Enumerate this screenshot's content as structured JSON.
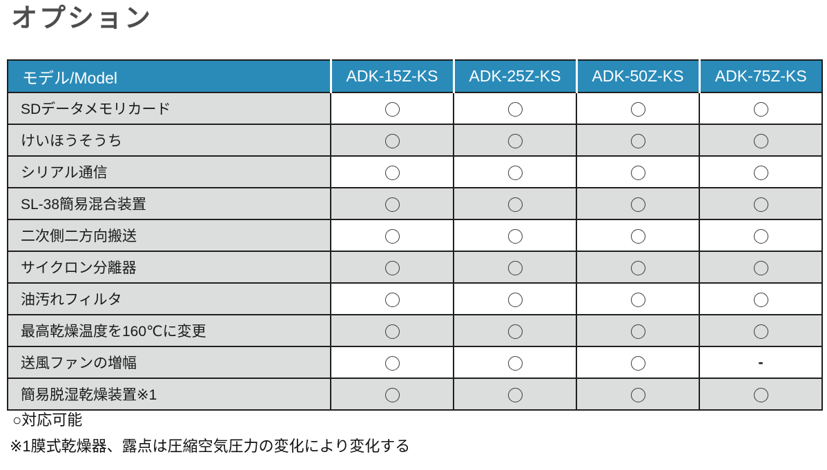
{
  "page": {
    "title": "オプション"
  },
  "table": {
    "header": {
      "label": "モデル/Model",
      "models": [
        "ADK-15Z-KS",
        "ADK-25Z-KS",
        "ADK-50Z-KS",
        "ADK-75Z-KS"
      ]
    },
    "rows": [
      {
        "label": "SDデータメモリカード",
        "values": [
          "○",
          "○",
          "○",
          "○"
        ]
      },
      {
        "label": "けいほうそうち",
        "values": [
          "○",
          "○",
          "○",
          "○"
        ]
      },
      {
        "label": "シリアル通信",
        "values": [
          "○",
          "○",
          "○",
          "○"
        ]
      },
      {
        "label": "SL-38簡易混合装置",
        "values": [
          "○",
          "○",
          "○",
          "○"
        ]
      },
      {
        "label": "二次側二方向搬送",
        "values": [
          "○",
          "○",
          "○",
          "○"
        ]
      },
      {
        "label": "サイクロン分離器",
        "values": [
          "○",
          "○",
          "○",
          "○"
        ]
      },
      {
        "label": "油汚れフィルタ",
        "values": [
          "○",
          "○",
          "○",
          "○"
        ]
      },
      {
        "label": "最高乾燥温度を160℃に変更",
        "values": [
          "○",
          "○",
          "○",
          "○"
        ]
      },
      {
        "label": "送風ファンの増幅",
        "values": [
          "○",
          "○",
          "○",
          "-"
        ]
      },
      {
        "label": "簡易脱湿乾燥装置※1",
        "values": [
          "○",
          "○",
          "○",
          "○"
        ]
      }
    ]
  },
  "legend": {
    "available": "○対応可能",
    "note": "※1膜式乾燥器、露点は圧縮空気圧力の変化により変化する"
  },
  "colors": {
    "header_bg": "#2a8bb9",
    "row_gray": "#dcdddd",
    "border": "#1f1f1f",
    "title_text": "#4d4d4d"
  }
}
